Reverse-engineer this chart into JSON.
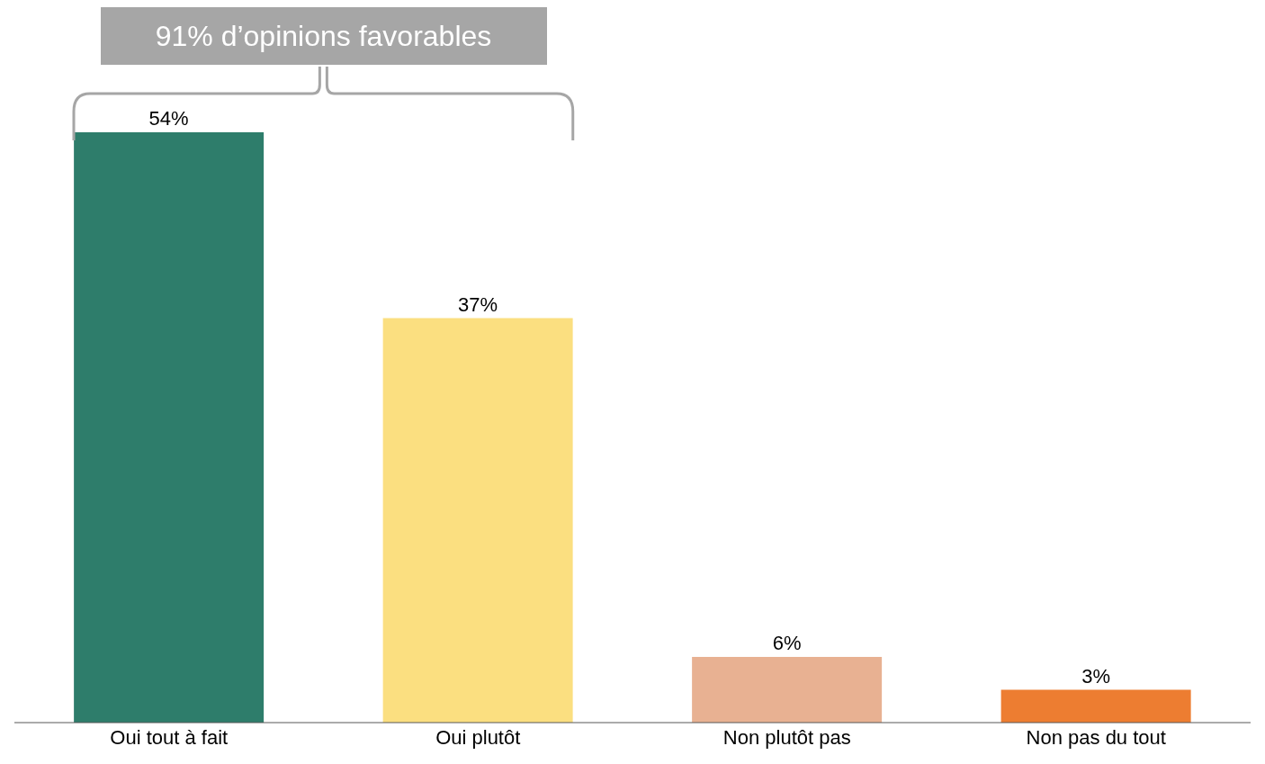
{
  "chart_data": {
    "type": "bar",
    "categories": [
      "Oui tout à fait",
      "Oui plutôt",
      "Non plutôt pas",
      "Non pas du tout"
    ],
    "values": [
      54,
      37,
      6,
      3
    ],
    "colors": [
      "#2e7d6b",
      "#fbdf80",
      "#e8b192",
      "#ed7d31"
    ],
    "value_labels": [
      "54%",
      "37%",
      "6%",
      "3%"
    ],
    "annotations": [
      "91% d’opinions favorables"
    ],
    "grid": false,
    "legend": false
  }
}
